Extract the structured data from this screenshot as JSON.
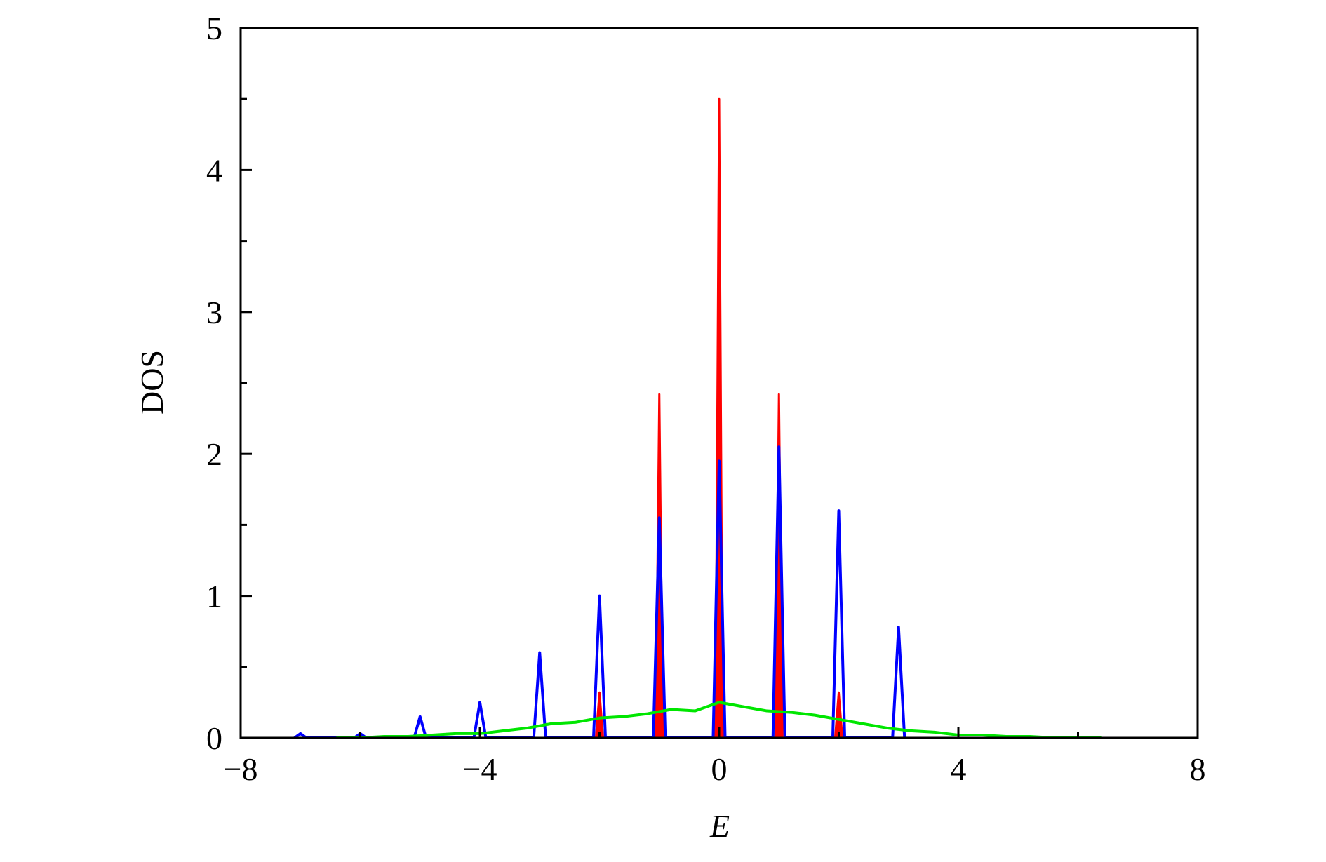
{
  "chart_data": {
    "type": "line",
    "xlabel": "E",
    "ylabel": "DOS",
    "xlim": [
      -8,
      8
    ],
    "ylim": [
      0,
      5
    ],
    "xticks": [
      {
        "value": -8,
        "label": "−8"
      },
      {
        "value": -4,
        "label": "−4"
      },
      0,
      4,
      8
    ],
    "yticks": [
      0,
      1,
      2,
      3,
      4,
      5
    ],
    "xminor_ticks": [
      -6,
      -2,
      2,
      6
    ],
    "yminor_ticks": [
      0.5,
      1.5,
      2.5,
      3.5,
      4.5
    ],
    "series": [
      {
        "color": "#ff0000",
        "fill": true,
        "x": [
          -2.06,
          -2,
          -1.94,
          -1.06,
          -1,
          -0.94,
          -0.06,
          0,
          0.06,
          0.94,
          1,
          1.06,
          1.94,
          2,
          2.06
        ],
        "values": [
          0,
          0.32,
          0,
          0,
          2.42,
          0,
          0,
          4.5,
          0,
          0,
          2.42,
          0,
          0,
          0.32,
          0
        ]
      },
      {
        "color": "#0000ff",
        "fill": false,
        "x": [
          -7.1,
          -7,
          -6.9,
          -6.1,
          -6,
          -5.9,
          -5.1,
          -5,
          -4.9,
          -4.1,
          -4,
          -3.9,
          -3.1,
          -3,
          -2.9,
          -2.1,
          -2,
          -1.9,
          -1.1,
          -1,
          -0.9,
          -0.1,
          0,
          0.1,
          0.9,
          1,
          1.1,
          1.9,
          2,
          2.1,
          2.9,
          3,
          3.1
        ],
        "values": [
          0,
          0.03,
          0,
          0,
          0.03,
          0,
          0,
          0.15,
          0,
          0,
          0.25,
          0,
          0,
          0.6,
          0,
          0,
          1.0,
          0,
          0,
          1.55,
          0,
          0,
          1.95,
          0,
          0,
          2.05,
          0,
          0,
          1.6,
          0,
          0,
          0.78,
          0
        ]
      },
      {
        "color": "#00e600",
        "fill": false,
        "x": [
          -6.4,
          -6,
          -5.6,
          -5.2,
          -4.8,
          -4.4,
          -4,
          -3.6,
          -3.2,
          -2.8,
          -2.4,
          -2,
          -1.6,
          -1.2,
          -0.8,
          -0.4,
          0,
          0.4,
          0.8,
          1.2,
          1.6,
          2,
          2.4,
          2.8,
          3.2,
          3.6,
          4,
          4.4,
          4.8,
          5.2,
          5.6,
          6,
          6.4
        ],
        "values": [
          0,
          0,
          0.01,
          0.01,
          0.02,
          0.03,
          0.03,
          0.05,
          0.07,
          0.1,
          0.11,
          0.14,
          0.15,
          0.17,
          0.2,
          0.19,
          0.25,
          0.22,
          0.19,
          0.18,
          0.16,
          0.13,
          0.1,
          0.07,
          0.05,
          0.04,
          0.02,
          0.02,
          0.01,
          0.01,
          0,
          0,
          0
        ]
      }
    ]
  }
}
